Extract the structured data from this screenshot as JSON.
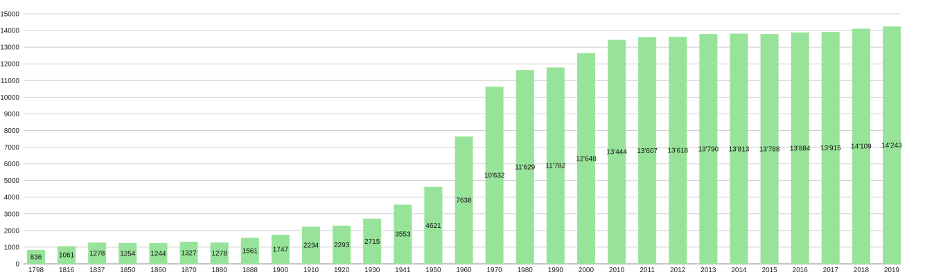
{
  "chart_data": {
    "type": "bar",
    "categories": [
      "1798",
      "1816",
      "1837",
      "1850",
      "1860",
      "1870",
      "1880",
      "1888",
      "1900",
      "1910",
      "1920",
      "1930",
      "1941",
      "1950",
      "1960",
      "1970",
      "1980",
      "1990",
      "2000",
      "2010",
      "2011",
      "2012",
      "2013",
      "2014",
      "2015",
      "2016",
      "2017",
      "2018",
      "2019"
    ],
    "values": [
      836,
      1061,
      1278,
      1254,
      1244,
      1327,
      1278,
      1561,
      1747,
      2234,
      2293,
      2715,
      3553,
      4621,
      7638,
      10632,
      11629,
      11782,
      12648,
      13444,
      13607,
      13618,
      13790,
      13813,
      13788,
      13884,
      13915,
      14109,
      14243
    ],
    "value_labels": [
      "836",
      "1061",
      "1278",
      "1254",
      "1244",
      "1327",
      "1278",
      "1561",
      "1747",
      "2234",
      "2293",
      "2715",
      "3553",
      "4621",
      "7638",
      "10'632",
      "11'629",
      "11'782",
      "12'648",
      "13'444",
      "13'607",
      "13'618",
      "13'790",
      "13'813",
      "13'788",
      "13'884",
      "13'915",
      "14'109",
      "14'243"
    ],
    "y_ticks": [
      "0",
      "1000",
      "2000",
      "3000",
      "4000",
      "5000",
      "6000",
      "7000",
      "8000",
      "9000",
      "10000",
      "11000",
      "12000",
      "13000",
      "14000",
      "15000"
    ],
    "ylim": [
      0,
      15000
    ],
    "grid": true,
    "bar_color": "#98e39a"
  }
}
